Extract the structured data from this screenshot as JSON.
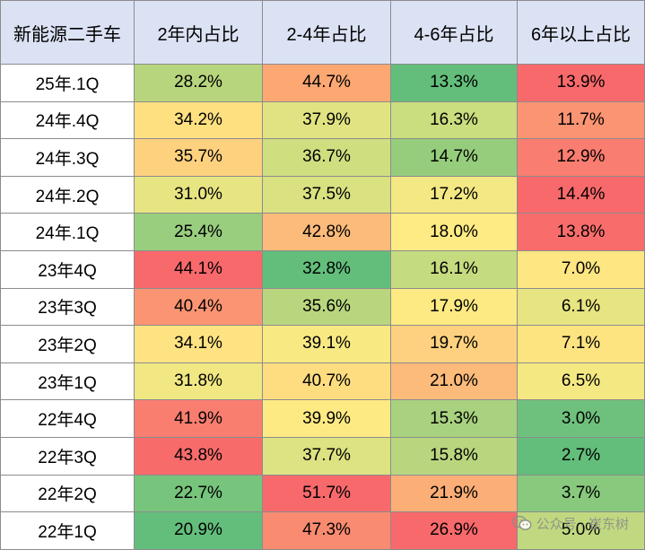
{
  "chart_data": {
    "type": "table",
    "title": "",
    "columns": [
      "新能源二手车",
      "2年内占比",
      "2-4年占比",
      "4-6年占比",
      "6年以上占比"
    ],
    "rows": [
      {
        "label": "25年.1Q",
        "cells": [
          {
            "text": "28.2%",
            "color": "#b7d57c"
          },
          {
            "text": "44.7%",
            "color": "#fda872"
          },
          {
            "text": "13.3%",
            "color": "#63be7b"
          },
          {
            "text": "13.9%",
            "color": "#f8696b"
          }
        ]
      },
      {
        "label": "24年.4Q",
        "cells": [
          {
            "text": "34.2%",
            "color": "#ffe081"
          },
          {
            "text": "37.9%",
            "color": "#e1e382"
          },
          {
            "text": "16.3%",
            "color": "#cadd7f"
          },
          {
            "text": "11.7%",
            "color": "#fb9473"
          }
        ]
      },
      {
        "label": "24年.3Q",
        "cells": [
          {
            "text": "35.7%",
            "color": "#fed17f"
          },
          {
            "text": "36.7%",
            "color": "#cfdf80"
          },
          {
            "text": "14.7%",
            "color": "#96cd7d"
          },
          {
            "text": "12.9%",
            "color": "#f97d70"
          }
        ]
      },
      {
        "label": "24年.2Q",
        "cells": [
          {
            "text": "31.0%",
            "color": "#e7e482"
          },
          {
            "text": "37.5%",
            "color": "#d9e181"
          },
          {
            "text": "17.2%",
            "color": "#f3e883"
          },
          {
            "text": "14.4%",
            "color": "#f8696b"
          }
        ]
      },
      {
        "label": "24年.1Q",
        "cells": [
          {
            "text": "25.4%",
            "color": "#98ce7e"
          },
          {
            "text": "42.8%",
            "color": "#fcbb7a"
          },
          {
            "text": "18.0%",
            "color": "#ffeb84"
          },
          {
            "text": "13.8%",
            "color": "#f86d6c"
          }
        ]
      },
      {
        "label": "23年4Q",
        "cells": [
          {
            "text": "44.1%",
            "color": "#f8696b"
          },
          {
            "text": "32.8%",
            "color": "#63be7b"
          },
          {
            "text": "16.1%",
            "color": "#c5db80"
          },
          {
            "text": "7.0%",
            "color": "#fee682"
          }
        ]
      },
      {
        "label": "23年3Q",
        "cells": [
          {
            "text": "40.4%",
            "color": "#fb9473"
          },
          {
            "text": "35.6%",
            "color": "#b9d67f"
          },
          {
            "text": "17.9%",
            "color": "#fdea83"
          },
          {
            "text": "6.1%",
            "color": "#e7e482"
          }
        ]
      },
      {
        "label": "23年2Q",
        "cells": [
          {
            "text": "34.1%",
            "color": "#ffe382"
          },
          {
            "text": "39.1%",
            "color": "#f9e983"
          },
          {
            "text": "19.7%",
            "color": "#fdd17f"
          },
          {
            "text": "7.1%",
            "color": "#fee481"
          }
        ]
      },
      {
        "label": "23年1Q",
        "cells": [
          {
            "text": "31.8%",
            "color": "#f1e783"
          },
          {
            "text": "40.7%",
            "color": "#fedd80"
          },
          {
            "text": "21.0%",
            "color": "#fcbb7a"
          },
          {
            "text": "6.5%",
            "color": "#f4e883"
          }
        ]
      },
      {
        "label": "22年4Q",
        "cells": [
          {
            "text": "41.9%",
            "color": "#f97e70"
          },
          {
            "text": "39.9%",
            "color": "#feea83"
          },
          {
            "text": "15.3%",
            "color": "#a8d27f"
          },
          {
            "text": "3.0%",
            "color": "#6ec17c"
          }
        ]
      },
      {
        "label": "22年3Q",
        "cells": [
          {
            "text": "43.8%",
            "color": "#f86b6b"
          },
          {
            "text": "37.7%",
            "color": "#dde282"
          },
          {
            "text": "15.8%",
            "color": "#b9d67f"
          },
          {
            "text": "2.7%",
            "color": "#63be7b"
          }
        ]
      },
      {
        "label": "22年2Q",
        "cells": [
          {
            "text": "22.7%",
            "color": "#77c47c"
          },
          {
            "text": "51.7%",
            "color": "#f8696b"
          },
          {
            "text": "21.9%",
            "color": "#fcae77"
          },
          {
            "text": "3.7%",
            "color": "#88c97d"
          }
        ]
      },
      {
        "label": "22年1Q",
        "cells": [
          {
            "text": "20.9%",
            "color": "#63be7b"
          },
          {
            "text": "47.3%",
            "color": "#f98b70"
          },
          {
            "text": "26.9%",
            "color": "#f8696b"
          },
          {
            "text": "5.0%",
            "color": "#c0d980"
          }
        ]
      }
    ]
  },
  "watermark": {
    "text": "公众号 · 崔东树",
    "icon": "wechat-icon"
  }
}
